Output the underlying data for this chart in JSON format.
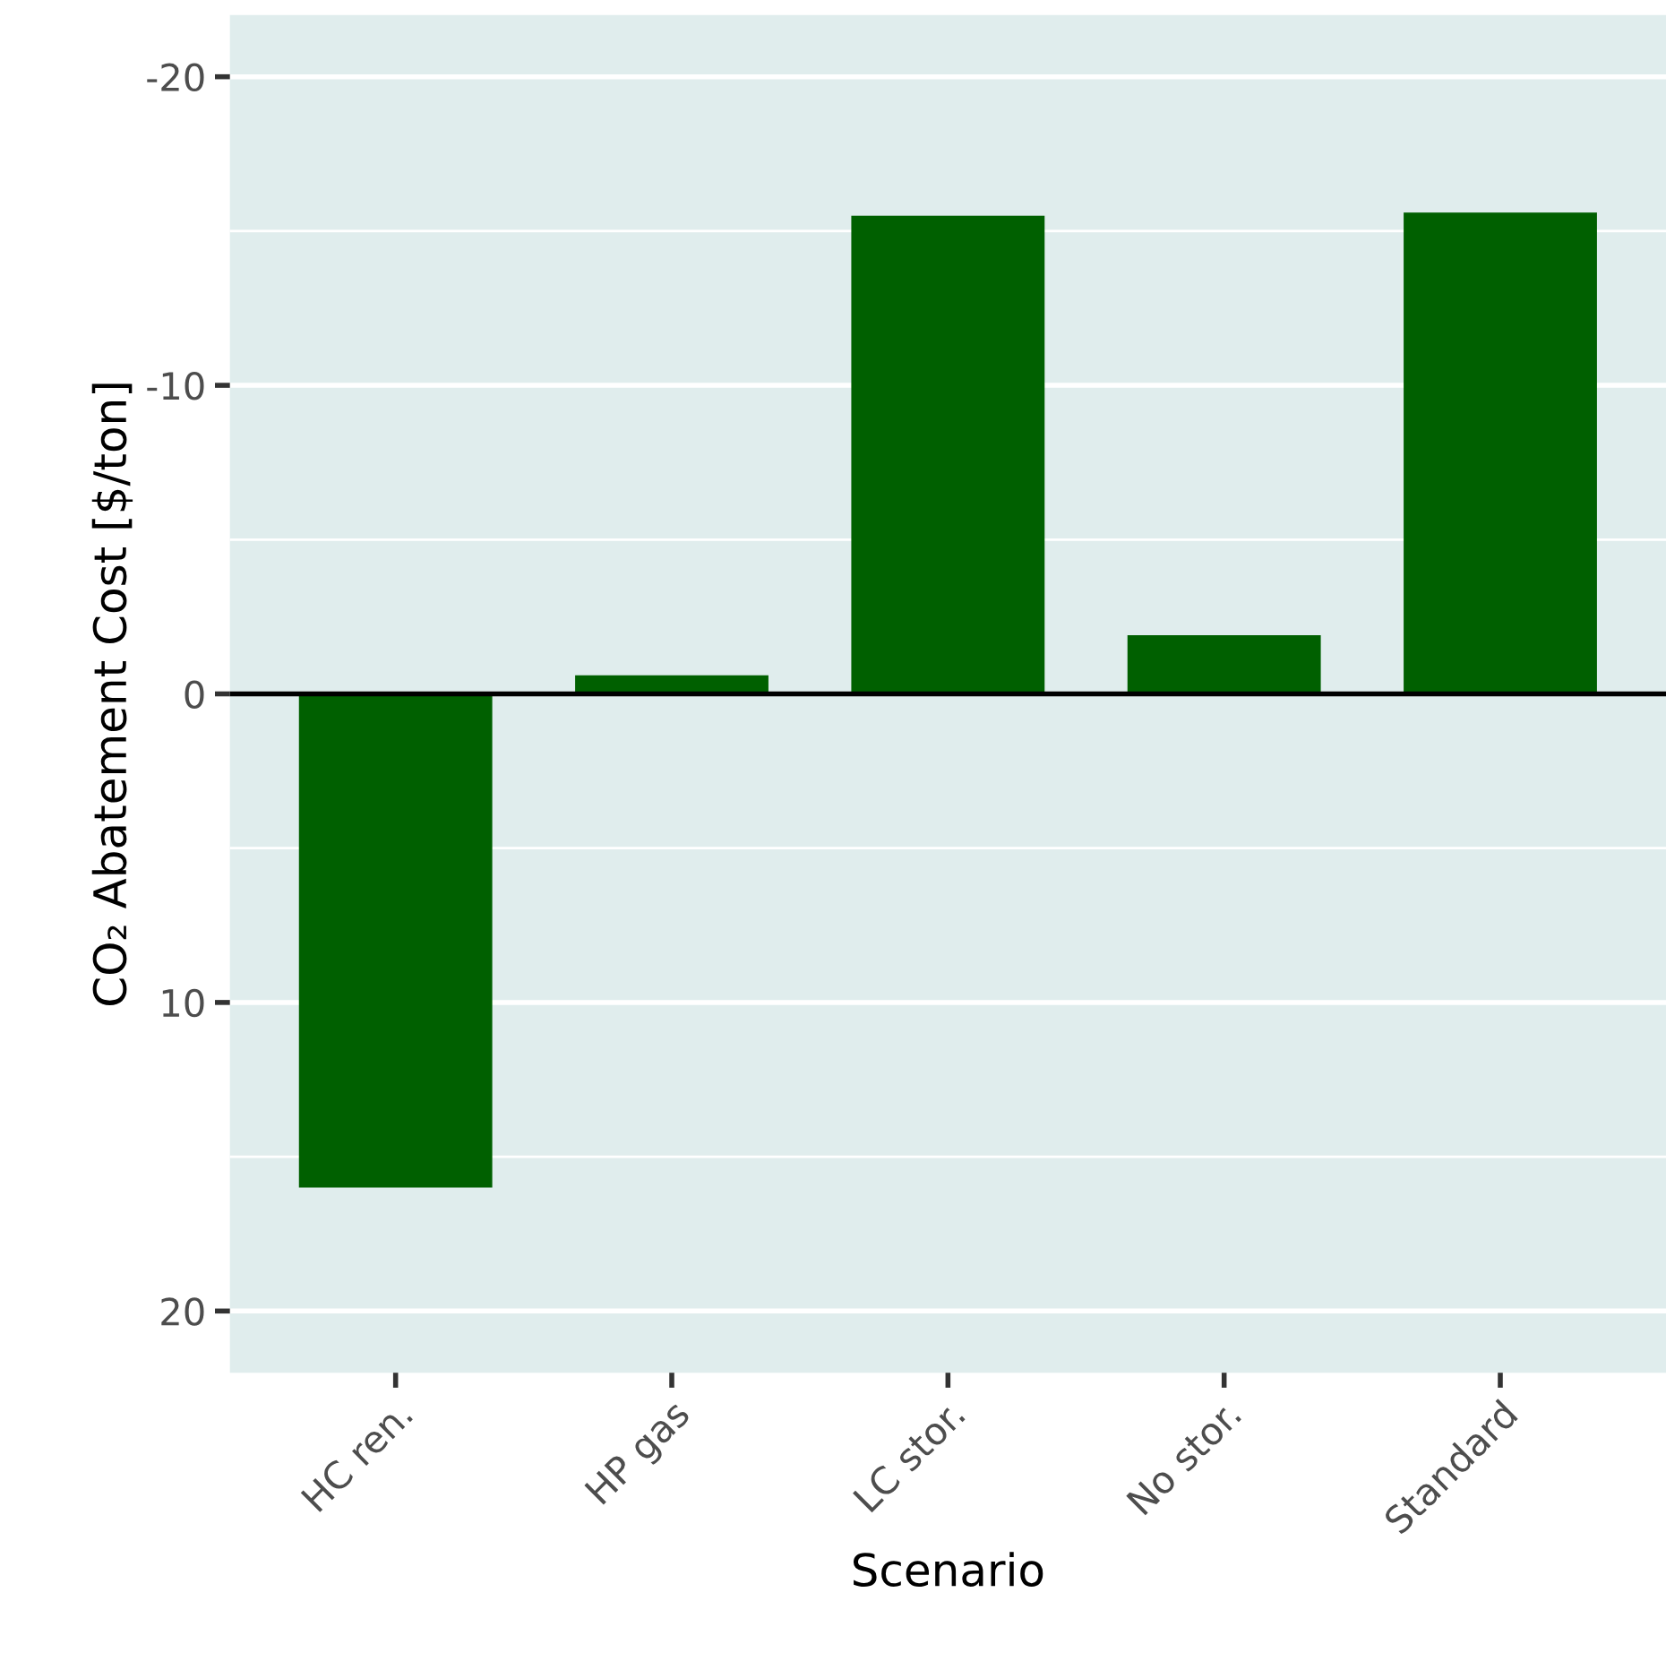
{
  "chart_data": {
    "type": "bar",
    "xlabel": "Scenario",
    "ylabel": "CO₂ Abatement Cost [$/ton]",
    "categories": [
      "HC ren.",
      "HP gas",
      "LC stor.",
      "No stor.",
      "Standard"
    ],
    "values": [
      16.0,
      -0.6,
      -15.5,
      -1.9,
      -15.6
    ],
    "color": "#006000",
    "ylim": [
      22,
      -22
    ],
    "yticks": [
      -20,
      {
        "value": -15,
        "label": null
      },
      -10,
      {
        "value": -5,
        "label": null
      },
      0,
      {
        "value": 5,
        "label": null
      },
      10,
      {
        "value": 15,
        "label": null
      },
      20
    ],
    "ref_lines": [
      {
        "axis": "y",
        "value": 0,
        "color": "#000000"
      }
    ],
    "grid": "y",
    "legend": false
  }
}
